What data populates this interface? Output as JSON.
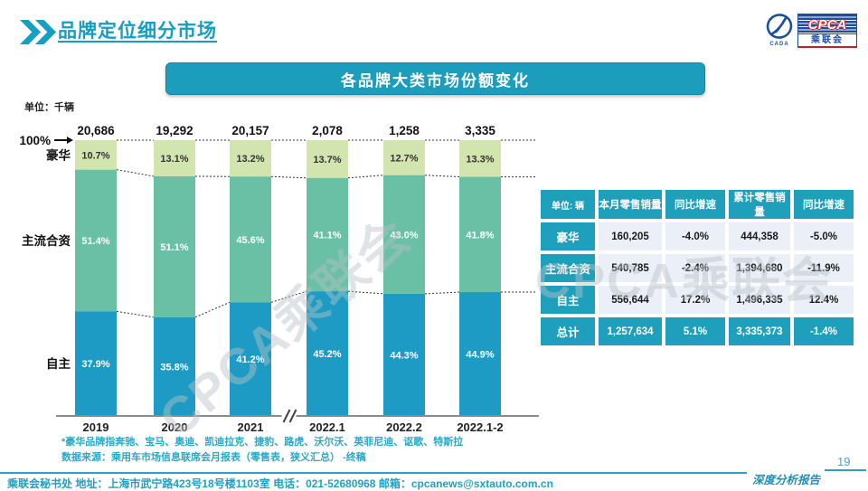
{
  "slide": {
    "title": "品牌定位细分市场",
    "banner_title": "各品牌大类市场份额变化",
    "page_number": "19",
    "report_label": "深度分析报告",
    "watermark": "CPCA乘联会"
  },
  "logo": {
    "cpca": "CPCA",
    "cpca_sub": "乘联会",
    "emblem_text": "CADA"
  },
  "colors": {
    "brand_teal": "#1B9DBB",
    "table_teal": "#1E9FBB",
    "table_cell_bg": "#EBEFF7",
    "luxury_green": "#D3E5AF",
    "joint_green": "#69C0A4",
    "domestic_blue": "#1D9BC4"
  },
  "chart_data": {
    "type": "bar",
    "stacked": true,
    "unit_label": "单位：千辆",
    "top_axis_label": "100%",
    "categories": [
      "2019",
      "2020",
      "2021",
      "2022.1",
      "2022.2",
      "2022.1-2"
    ],
    "totals": [
      "20,686",
      "19,292",
      "20,157",
      "2,078",
      "1,258",
      "3,335"
    ],
    "axis_break_after_index": 2,
    "ylim": [
      0,
      100
    ],
    "legend_position": "left-of-first-bar",
    "series": [
      {
        "name": "豪华",
        "values": [
          10.7,
          13.1,
          13.2,
          13.7,
          12.7,
          13.3
        ],
        "labels": [
          "10.7%",
          "13.1%",
          "13.2%",
          "13.7%",
          "12.7%",
          "13.3%"
        ],
        "color": "#D3E5AF",
        "label_color": "#333333"
      },
      {
        "name": "主流合资",
        "values": [
          51.4,
          51.1,
          45.6,
          41.1,
          43.0,
          41.8
        ],
        "labels": [
          "51.4%",
          "51.1%",
          "45.6%",
          "41.1%",
          "43.0%",
          "41.8%"
        ],
        "color": "#69C0A4",
        "label_color": "#ffffff"
      },
      {
        "name": "自主",
        "values": [
          37.9,
          35.8,
          41.2,
          45.2,
          44.3,
          44.9
        ],
        "labels": [
          "37.9%",
          "35.8%",
          "41.2%",
          "45.2%",
          "44.3%",
          "44.9%"
        ],
        "color": "#1D9BC4",
        "label_color": "#ffffff"
      }
    ]
  },
  "table": {
    "headers": [
      "单位: 辆",
      "本月零售销量",
      "同比增速",
      "累计零售销量",
      "同比增速"
    ],
    "rows": [
      {
        "label": "豪华",
        "cells": [
          "160,205",
          "-4.0%",
          "444,358",
          "-5.0%"
        ],
        "total": false
      },
      {
        "label": "主流合资",
        "cells": [
          "540,785",
          "-2.4%",
          "1,394,680",
          "-11.9%"
        ],
        "total": false
      },
      {
        "label": "自主",
        "cells": [
          "556,644",
          "17.2%",
          "1,496,335",
          "12.4%"
        ],
        "total": false
      },
      {
        "label": "总计",
        "cells": [
          "1,257,634",
          "5.1%",
          "3,335,373",
          "-1.4%"
        ],
        "total": true
      }
    ]
  },
  "notes": {
    "line1": "*豪华品牌指奔驰、宝马、奥迪、凯迪拉克、捷豹、路虎、沃尔沃、英菲尼迪、讴歌、特斯拉",
    "line2": "数据来源：乘用车市场信息联席会月报表（零售表，狭义汇总） -终稿"
  },
  "footer": {
    "contact": "乘联会秘书处  地址：上海市武宁路423号18号楼1103室 电话：021-52680968  邮箱：cpcanews@sxtauto.com.cn"
  }
}
